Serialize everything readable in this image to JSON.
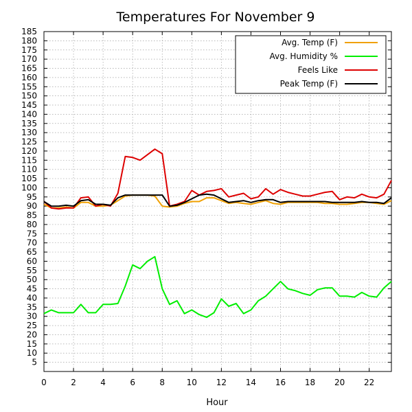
{
  "chart_data": {
    "type": "line",
    "title": "Temperatures For November 9",
    "xlabel": "Hour",
    "ylabel": "",
    "xlim": [
      0,
      23.5
    ],
    "ylim": [
      0,
      185
    ],
    "xticks": [
      0,
      2,
      4,
      6,
      8,
      10,
      12,
      14,
      16,
      18,
      20,
      22
    ],
    "yticks": [
      5,
      10,
      15,
      20,
      25,
      30,
      35,
      40,
      45,
      50,
      55,
      60,
      65,
      70,
      75,
      80,
      85,
      90,
      95,
      100,
      105,
      110,
      115,
      120,
      125,
      130,
      135,
      140,
      145,
      150,
      155,
      160,
      165,
      170,
      175,
      180,
      185
    ],
    "grid": true,
    "legend_position": "top-right",
    "x": [
      0,
      0.5,
      1,
      1.5,
      2,
      2.5,
      3,
      3.5,
      4,
      4.5,
      5,
      5.5,
      6,
      6.5,
      7,
      7.5,
      8,
      8.5,
      9,
      9.5,
      10,
      10.5,
      11,
      11.5,
      12,
      12.5,
      13,
      13.5,
      14,
      14.5,
      15,
      15.5,
      16,
      16.5,
      17,
      17.5,
      18,
      18.5,
      19,
      19.5,
      20,
      20.5,
      21,
      21.5,
      22,
      22.5,
      23,
      23.5
    ],
    "series": [
      {
        "name": "Avg. Temp (F)",
        "color": "#f0a000",
        "values": [
          91,
          89,
          89,
          89.5,
          89,
          92,
          92,
          90,
          90,
          90.5,
          93,
          95.5,
          96,
          96,
          96,
          95.5,
          90,
          89.5,
          90,
          91.5,
          92.5,
          92.5,
          94.5,
          94.5,
          93,
          91.5,
          92,
          91.5,
          91,
          92,
          93,
          91.5,
          91,
          92,
          92,
          92,
          92,
          92,
          91.5,
          91.5,
          91,
          91,
          91.5,
          92,
          92,
          91.5,
          91,
          93
        ]
      },
      {
        "name": "Avg. Humidity %",
        "color": "#00ee00",
        "values": [
          31.5,
          33.5,
          32,
          32,
          32,
          36.5,
          32,
          32,
          36.5,
          36.5,
          37,
          46.5,
          58,
          56,
          60,
          62.5,
          45,
          36.5,
          38.5,
          31.5,
          33.5,
          31,
          29.5,
          32,
          39.5,
          35.5,
          37,
          31.5,
          33.5,
          38.5,
          41,
          45,
          49,
          45,
          44,
          42.5,
          41.5,
          44.5,
          45.5,
          45.5,
          41,
          41,
          40.5,
          43,
          41,
          40.5,
          45.5,
          49
        ]
      },
      {
        "name": "Feels Like",
        "color": "#dd0000",
        "values": [
          92.5,
          89,
          88.5,
          89,
          89,
          94.5,
          95,
          90,
          91,
          90,
          97,
          117,
          116.5,
          115,
          118,
          121,
          118.5,
          90,
          91,
          92.5,
          98.5,
          96,
          98,
          98.5,
          99.5,
          95,
          96,
          97,
          94,
          95,
          99.5,
          96.5,
          99,
          97.5,
          96.5,
          95.5,
          95.5,
          96.5,
          97.5,
          98,
          93.5,
          95,
          94.5,
          96.5,
          95,
          94.5,
          96.5,
          104
        ]
      },
      {
        "name": "Peak Temp (F)",
        "color": "#000000",
        "values": [
          92.5,
          90,
          90,
          90.5,
          90,
          93,
          93.5,
          91,
          91,
          90.5,
          94.5,
          96,
          96,
          96,
          96,
          96,
          96,
          90,
          90.5,
          92,
          94,
          96,
          96.5,
          96,
          94,
          92,
          92.5,
          93,
          92,
          93,
          93.5,
          93.5,
          92,
          92.5,
          92.5,
          92.5,
          92.5,
          92.5,
          92.5,
          92,
          92,
          92,
          92,
          92.5,
          92,
          92,
          91.5,
          94.5
        ]
      }
    ]
  }
}
